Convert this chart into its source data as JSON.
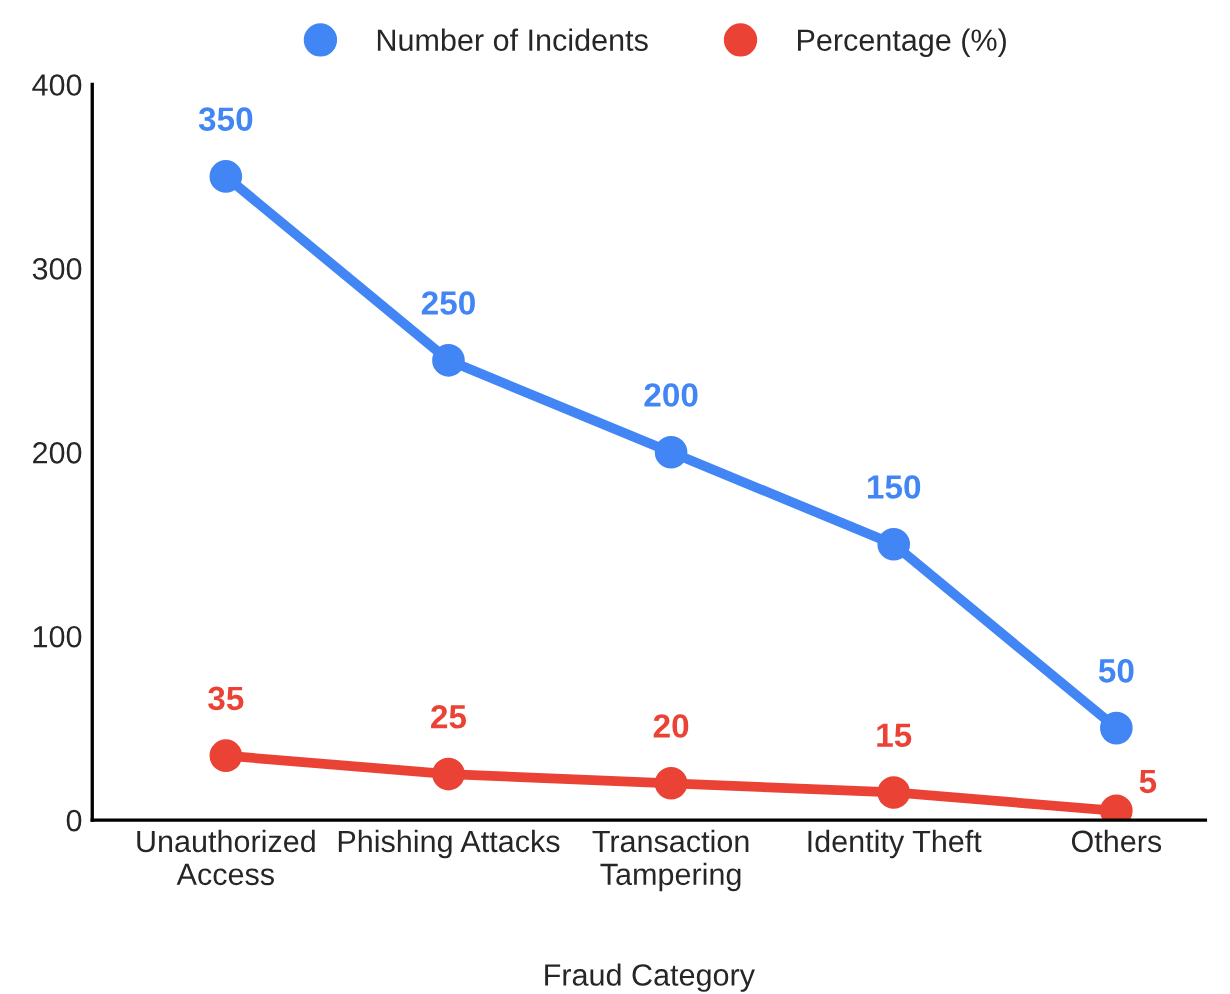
{
  "chart_data": {
    "type": "line",
    "xlabel": "Fraud Category",
    "categories": [
      "Unauthorized\nAccess",
      "Phishing Attacks",
      "Transaction\nTampering",
      "Identity Theft",
      "Others"
    ],
    "series": [
      {
        "name": "Number of Incidents",
        "color": "#4285f4",
        "values": [
          350,
          250,
          200,
          150,
          50
        ]
      },
      {
        "name": "Percentage (%)",
        "color": "#ea4335",
        "values": [
          35,
          25,
          20,
          15,
          5
        ]
      }
    ],
    "ylim": [
      0,
      400
    ],
    "yticks": [
      0,
      100,
      200,
      300,
      400
    ],
    "grid": false,
    "legend": "top",
    "marker": "circle",
    "line_style": "solid",
    "data_labels": true
  }
}
